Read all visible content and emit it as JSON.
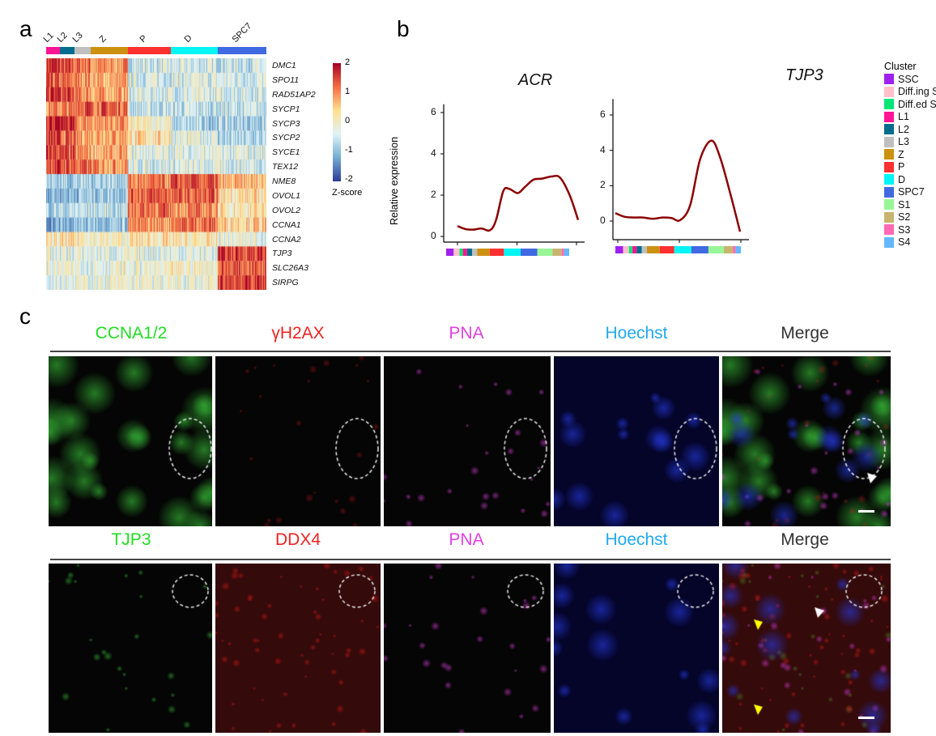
{
  "panel_labels": {
    "a": "a",
    "b": "b",
    "c": "c"
  },
  "chart_data": [
    {
      "type": "heatmap",
      "title": "",
      "clusters": [
        {
          "name": "L1",
          "color": "#ff1493"
        },
        {
          "name": "L2",
          "color": "#006d8f"
        },
        {
          "name": "L3",
          "color": "#bfbfbf"
        },
        {
          "name": "Z",
          "color": "#cd9112"
        },
        {
          "name": "P",
          "color": "#ff3030"
        },
        {
          "name": "D",
          "color": "#00f5f5"
        },
        {
          "name": "SPC7",
          "color": "#4169e1"
        }
      ],
      "cluster_widths": [
        17,
        18,
        20,
        46,
        53,
        58,
        60
      ],
      "genes": [
        "DMC1",
        "SPO11",
        "RAD51AP2",
        "SYCP1",
        "SYCP3",
        "SYCP2",
        "SYCE1",
        "TEX12",
        "NME8",
        "OVOL1",
        "OVOL2",
        "CCNA1",
        "CCNA2",
        "TJP3",
        "SLC26A3",
        "SIRPG"
      ],
      "mean_zscore_by_cluster": [
        [
          1.6,
          1.3,
          1.2,
          0.9,
          -0.5,
          -0.5,
          -0.5
        ],
        [
          1.2,
          1.1,
          1.0,
          0.7,
          -0.4,
          -0.4,
          -0.4
        ],
        [
          1.6,
          1.4,
          1.0,
          0.8,
          -0.4,
          -0.4,
          -0.4
        ],
        [
          1.0,
          1.0,
          1.4,
          1.3,
          -0.6,
          -0.6,
          -0.6
        ],
        [
          1.8,
          1.7,
          1.0,
          0.9,
          0.0,
          -0.8,
          -0.8
        ],
        [
          1.4,
          1.2,
          0.9,
          0.9,
          0.3,
          -0.3,
          -0.8
        ],
        [
          1.5,
          1.3,
          0.9,
          0.7,
          -0.3,
          -0.3,
          -0.4
        ],
        [
          1.5,
          1.4,
          1.2,
          1.0,
          -0.4,
          -0.4,
          -0.4
        ],
        [
          -0.8,
          -0.8,
          -0.8,
          -0.7,
          1.0,
          1.3,
          0.6
        ],
        [
          -1.0,
          -1.0,
          -0.9,
          -0.8,
          1.3,
          1.2,
          0.3
        ],
        [
          -0.7,
          -0.7,
          -0.6,
          -0.6,
          1.2,
          1.0,
          0.2
        ],
        [
          -1.2,
          -1.1,
          -1.0,
          -0.8,
          0.9,
          1.2,
          0.5
        ],
        [
          0.1,
          0.2,
          0.2,
          0.0,
          0.2,
          0.1,
          -0.2
        ],
        [
          -0.3,
          -0.3,
          -0.3,
          -0.3,
          -0.3,
          -0.3,
          1.5
        ],
        [
          -0.2,
          -0.2,
          -0.2,
          -0.2,
          -0.2,
          0.0,
          1.3
        ],
        [
          -0.2,
          -0.2,
          -0.2,
          -0.2,
          -0.2,
          -0.2,
          1.5
        ]
      ],
      "colorbar": {
        "title": "Z-score",
        "ticks": [
          "2",
          "1",
          "0",
          "-1",
          "-2"
        ],
        "range": [
          -2,
          2
        ],
        "colors": [
          "#2c3b98",
          "#74add1",
          "#e0f3f8",
          "#fee090",
          "#f46d43",
          "#a50026"
        ]
      }
    },
    {
      "type": "line",
      "title": "ACR",
      "ylabel": "Relative expression",
      "ylim": [
        -0.2,
        6.4
      ],
      "yticks": [
        "0",
        "2",
        "4",
        "6"
      ],
      "x": [
        0,
        0.07,
        0.13,
        0.2,
        0.27,
        0.32,
        0.38,
        0.43,
        0.5,
        0.56,
        0.63,
        0.7,
        0.78,
        0.85,
        0.93,
        1.0
      ],
      "y": [
        0.5,
        0.35,
        0.33,
        0.38,
        0.3,
        0.8,
        2.2,
        2.3,
        2.1,
        2.4,
        2.75,
        2.8,
        2.9,
        2.85,
        2.0,
        0.8
      ],
      "color": "#8b0000"
    },
    {
      "type": "line",
      "title": "TJP3",
      "ylabel": "",
      "ylim": [
        -0.8,
        6.9
      ],
      "yticks": [
        "0",
        "2",
        "4",
        "6"
      ],
      "x": [
        0,
        0.07,
        0.14,
        0.22,
        0.3,
        0.38,
        0.45,
        0.52,
        0.6,
        0.68,
        0.77,
        0.84,
        0.92,
        1.0
      ],
      "y": [
        0.45,
        0.25,
        0.2,
        0.2,
        0.13,
        0.2,
        0.17,
        0.05,
        0.9,
        3.5,
        4.55,
        3.6,
        1.6,
        -0.6
      ],
      "color": "#8b0000"
    }
  ],
  "cluster_legend": {
    "title": "Cluster",
    "items": [
      {
        "name": "SSC",
        "color": "#a020f0",
        "w": 9
      },
      {
        "name": "Diff.ing SPG",
        "color": "#ffc0cb",
        "w": 7
      },
      {
        "name": "Diff.ed SPG",
        "color": "#00e676",
        "w": 4
      },
      {
        "name": "L1",
        "color": "#ff1493",
        "w": 5
      },
      {
        "name": "L2",
        "color": "#006d8f",
        "w": 6
      },
      {
        "name": "L3",
        "color": "#bfbfbf",
        "w": 6
      },
      {
        "name": "Z",
        "color": "#cd9112",
        "w": 15
      },
      {
        "name": "P",
        "color": "#ff3030",
        "w": 17
      },
      {
        "name": "D",
        "color": "#00f5f5",
        "w": 20
      },
      {
        "name": "SPC7",
        "color": "#4169e1",
        "w": 20
      },
      {
        "name": "S1",
        "color": "#98f598",
        "w": 18
      },
      {
        "name": "S2",
        "color": "#c8b46e",
        "w": 11
      },
      {
        "name": "S3",
        "color": "#ff69b4",
        "w": 3
      },
      {
        "name": "S4",
        "color": "#63b8ff",
        "w": 6
      }
    ]
  },
  "micro": {
    "rows": [
      {
        "channels": [
          {
            "label": "CCNA1/2",
            "color": "#22dd22"
          },
          {
            "label": "γH2AX",
            "color": "#ee2222"
          },
          {
            "label": "PNA",
            "color": "#e040e0"
          },
          {
            "label": "Hoechst",
            "color": "#20aaee"
          },
          {
            "label": "Merge",
            "color": "#333333"
          }
        ]
      },
      {
        "channels": [
          {
            "label": "TJP3",
            "color": "#22dd22"
          },
          {
            "label": "DDX4",
            "color": "#ee2222"
          },
          {
            "label": "PNA",
            "color": "#e040e0"
          },
          {
            "label": "Hoechst",
            "color": "#20aaee"
          },
          {
            "label": "Merge",
            "color": "#333333"
          }
        ]
      }
    ]
  }
}
